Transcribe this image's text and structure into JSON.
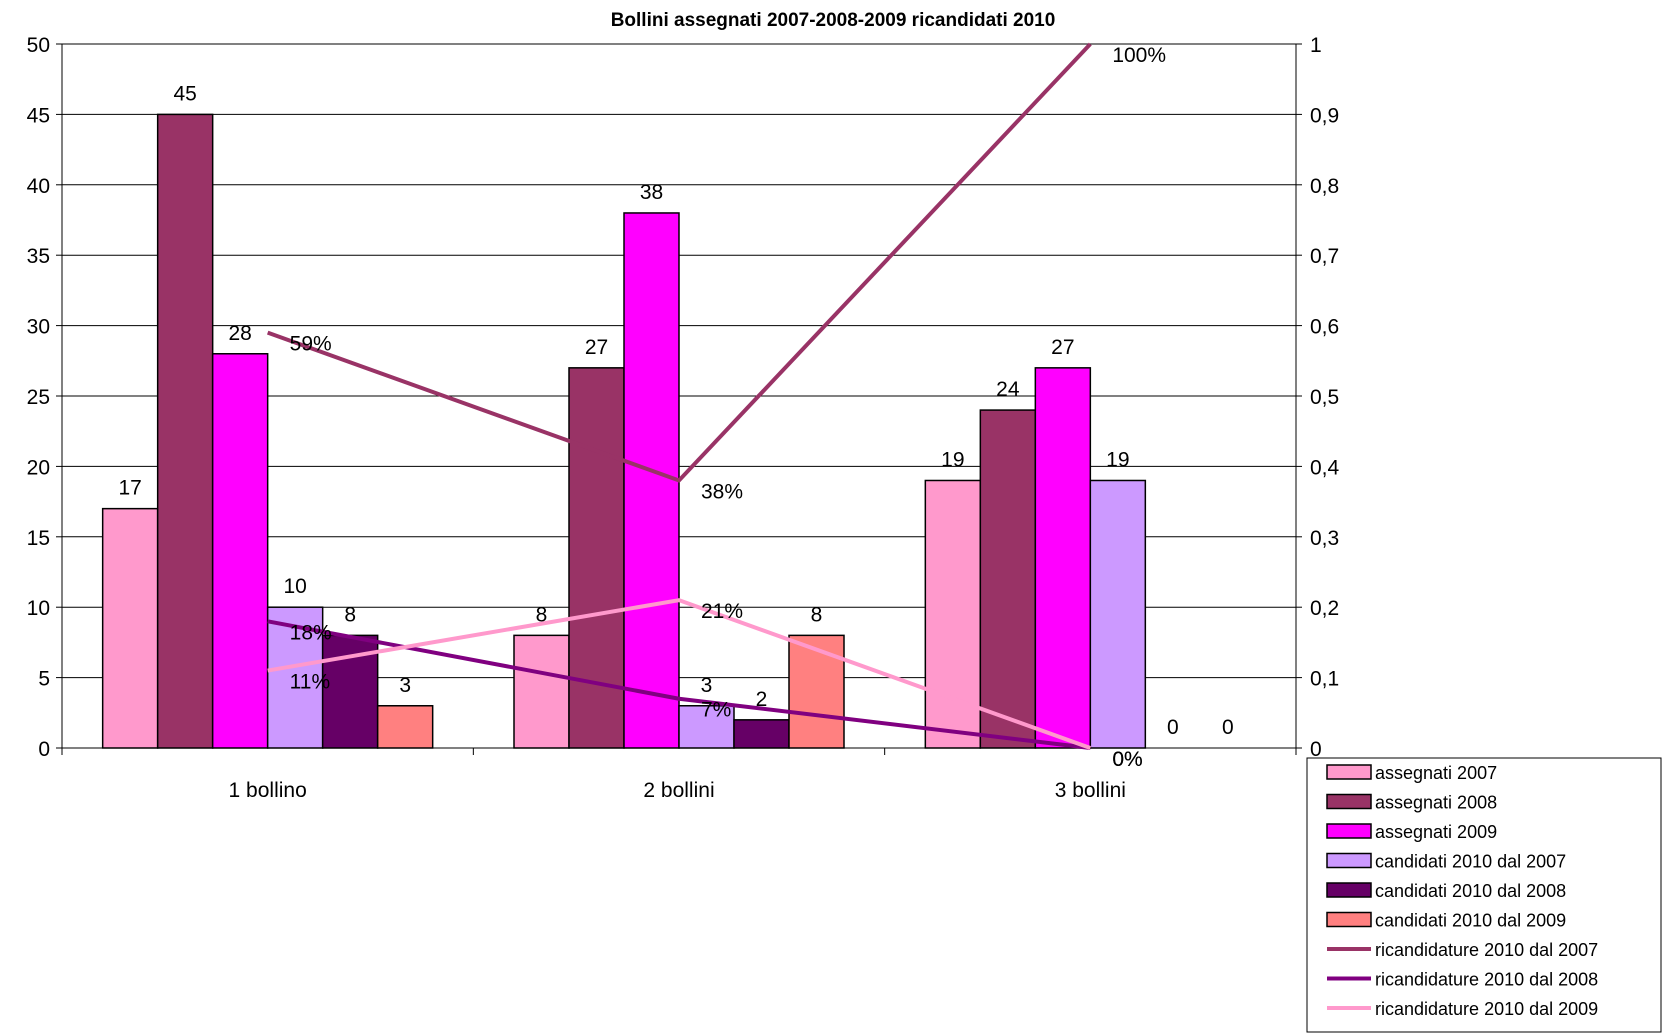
{
  "chart_data": {
    "type": "bar",
    "title": "Bollini assegnati 2007-2008-2009 ricandidati 2010",
    "categories": [
      "1 bollino",
      "2 bollini",
      "3 bollini"
    ],
    "y_left": {
      "min": 0,
      "max": 50,
      "step": 5,
      "ticks": [
        "0",
        "5",
        "10",
        "15",
        "20",
        "25",
        "30",
        "35",
        "40",
        "45",
        "50"
      ]
    },
    "y_right": {
      "min": 0,
      "max": 1,
      "step": 0.1,
      "ticks": [
        "0",
        "0,1",
        "0,2",
        "0,3",
        "0,4",
        "0,5",
        "0,6",
        "0,7",
        "0,8",
        "0,9",
        "1"
      ]
    },
    "grid": true,
    "legend_position": "bottom-right",
    "bar_series": [
      {
        "name": "assegnati 2007",
        "color": "#ff99cc",
        "values": [
          17,
          8,
          19
        ],
        "labels": [
          "17",
          "8",
          "19"
        ]
      },
      {
        "name": "assegnati 2008",
        "color": "#993366",
        "values": [
          45,
          27,
          24
        ],
        "labels": [
          "45",
          "27",
          "24"
        ]
      },
      {
        "name": "assegnati 2009",
        "color": "#ff00ff",
        "values": [
          28,
          38,
          27
        ],
        "labels": [
          "28",
          "38",
          "27"
        ]
      },
      {
        "name": "candidati 2010 dal 2007",
        "color": "#cc99ff",
        "values": [
          10,
          3,
          19
        ],
        "labels": [
          "10",
          "3",
          "19"
        ]
      },
      {
        "name": "candidati 2010 dal 2008",
        "color": "#660066",
        "values": [
          8,
          2,
          0
        ],
        "labels": [
          "8",
          "2",
          "0"
        ]
      },
      {
        "name": "candidati 2010 dal 2009",
        "color": "#ff8080",
        "values": [
          3,
          8,
          0
        ],
        "labels": [
          "3",
          "8",
          "0"
        ]
      }
    ],
    "line_series": [
      {
        "name": "ricandidature 2010 dal 2007",
        "color": "#993366",
        "values": [
          0.59,
          0.38,
          1.0
        ],
        "labels": [
          "59%",
          "38%",
          "100%"
        ]
      },
      {
        "name": "ricandidature 2010 dal 2008",
        "color": "#800080",
        "values": [
          0.18,
          0.07,
          0.0
        ],
        "labels": [
          "18%",
          "7%",
          "0%"
        ]
      },
      {
        "name": "ricandidature 2010 dal 2009",
        "color": "#ff99cc",
        "values": [
          0.11,
          0.21,
          0.0
        ],
        "labels": [
          "11%",
          "21%",
          "0%"
        ]
      }
    ]
  }
}
